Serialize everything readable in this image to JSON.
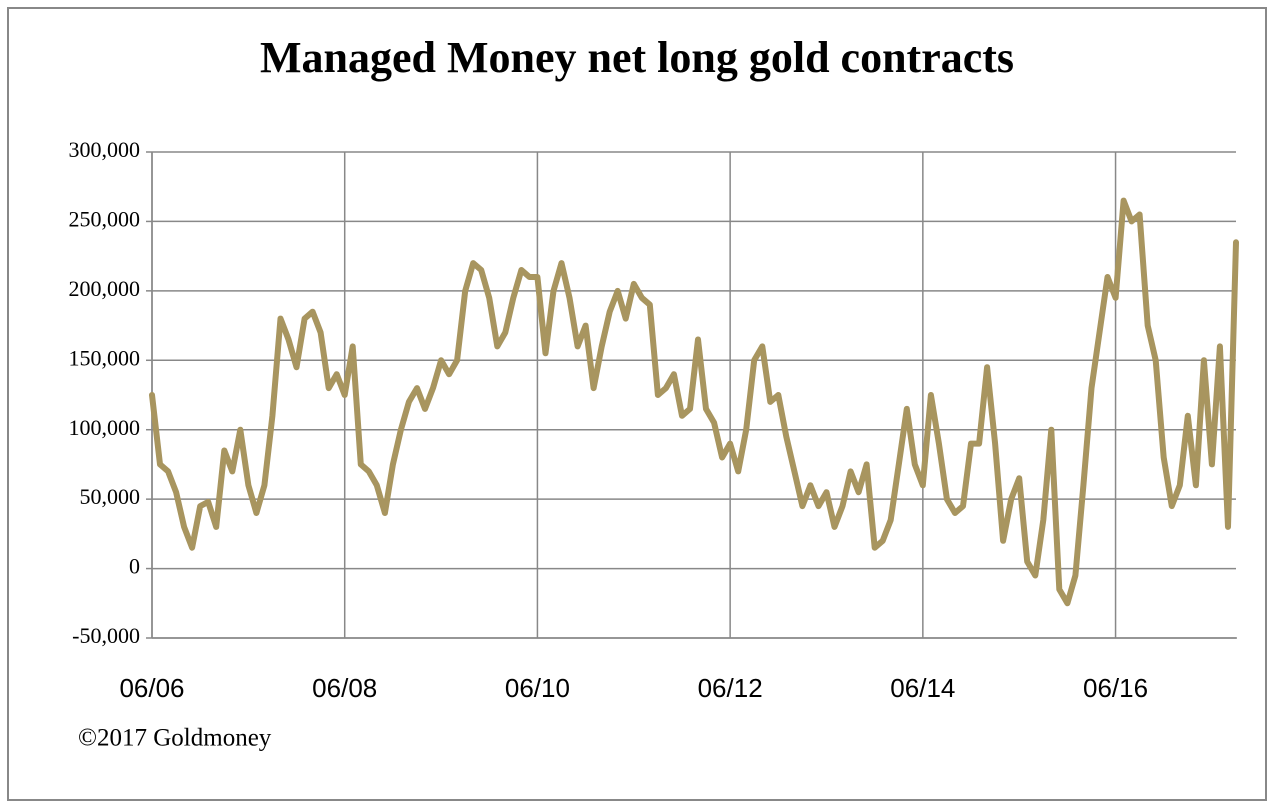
{
  "chart_data": {
    "type": "line",
    "title": "Managed Money net long gold contracts",
    "annotation": "©2017 Goldmoney",
    "categories": [
      "06/06",
      null,
      null,
      null,
      null,
      null,
      null,
      null,
      null,
      null,
      null,
      null,
      null,
      null,
      null,
      null,
      null,
      null,
      null,
      null,
      null,
      null,
      null,
      null,
      "06/08",
      null,
      null,
      null,
      null,
      null,
      null,
      null,
      null,
      null,
      null,
      null,
      null,
      null,
      null,
      null,
      null,
      null,
      null,
      null,
      null,
      null,
      null,
      null,
      "06/10",
      null,
      null,
      null,
      null,
      null,
      null,
      null,
      null,
      null,
      null,
      null,
      null,
      null,
      null,
      null,
      null,
      null,
      null,
      null,
      null,
      null,
      null,
      null,
      "06/12",
      null,
      null,
      null,
      null,
      null,
      null,
      null,
      null,
      null,
      null,
      null,
      null,
      null,
      null,
      null,
      null,
      null,
      null,
      null,
      null,
      null,
      null,
      null,
      "06/14",
      null,
      null,
      null,
      null,
      null,
      null,
      null,
      null,
      null,
      null,
      null,
      null,
      null,
      null,
      null,
      null,
      null,
      null,
      null,
      null,
      null,
      null,
      null,
      "06/16",
      null,
      null,
      null,
      null,
      null,
      null,
      null,
      null,
      null,
      null,
      null,
      null,
      null,
      null,
      null
    ],
    "series": [
      {
        "color": "#a8955f",
        "values": [
          125000,
          75000,
          70000,
          55000,
          30000,
          15000,
          45000,
          48000,
          30000,
          85000,
          70000,
          100000,
          60000,
          40000,
          60000,
          110000,
          180000,
          165000,
          145000,
          180000,
          185000,
          170000,
          130000,
          140000,
          125000,
          160000,
          75000,
          70000,
          60000,
          40000,
          75000,
          100000,
          120000,
          130000,
          115000,
          130000,
          150000,
          140000,
          150000,
          200000,
          220000,
          215000,
          195000,
          160000,
          170000,
          195000,
          215000,
          210000,
          210000,
          155000,
          200000,
          220000,
          195000,
          160000,
          175000,
          130000,
          160000,
          185000,
          200000,
          180000,
          205000,
          195000,
          190000,
          125000,
          130000,
          140000,
          110000,
          115000,
          165000,
          115000,
          105000,
          80000,
          90000,
          70000,
          100000,
          150000,
          160000,
          120000,
          125000,
          95000,
          70000,
          45000,
          60000,
          45000,
          55000,
          30000,
          45000,
          70000,
          55000,
          75000,
          15000,
          20000,
          35000,
          75000,
          115000,
          75000,
          60000,
          125000,
          90000,
          50000,
          40000,
          45000,
          90000,
          90000,
          145000,
          90000,
          20000,
          50000,
          65000,
          5000,
          -5000,
          35000,
          100000,
          -15000,
          -25000,
          -5000,
          60000,
          130000,
          170000,
          210000,
          195000,
          265000,
          250000,
          255000,
          175000,
          150000,
          80000,
          45000,
          60000,
          110000,
          60000,
          150000,
          75000,
          160000,
          30000,
          235000
        ]
      }
    ],
    "ylim": [
      -50000,
      300000
    ],
    "yticks": [
      {
        "value": -50000,
        "label": "-50,000"
      },
      0,
      {
        "value": 50000,
        "label": "50,000"
      },
      {
        "value": 100000,
        "label": "100,000"
      },
      {
        "value": 150000,
        "label": "150,000"
      },
      {
        "value": 200000,
        "label": "200,000"
      },
      {
        "value": 250000,
        "label": "250,000"
      },
      {
        "value": 300000,
        "label": "300,000"
      }
    ],
    "grid": true
  }
}
